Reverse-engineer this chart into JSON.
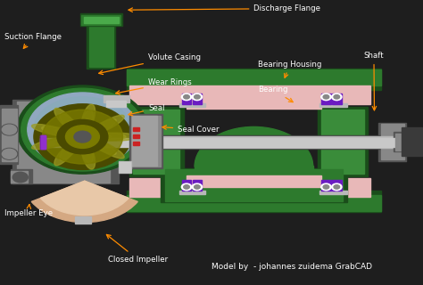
{
  "background_color": "#1e1e1e",
  "figsize": [
    4.74,
    3.2
  ],
  "dpi": 100,
  "arrow_color": "#FF8C00",
  "text_color": "#ffffff",
  "label_fontsize": 6.2,
  "credit_fontsize": 6.5,
  "colors": {
    "dark_bg": "#1e1e1e",
    "green_main": "#2d7a2d",
    "green_dark": "#1a4d1a",
    "green_mid": "#3a8c3a",
    "green_light": "#4aaa4a",
    "olive_dark": "#4a4a00",
    "olive_mid": "#7a7a00",
    "olive_light": "#9a9a20",
    "gray_light": "#b8b8b8",
    "gray_mid": "#888888",
    "gray_dark": "#555555",
    "gray_darker": "#3a3a3a",
    "pink_light": "#e8b8b8",
    "pink_mid": "#d8a0a0",
    "purple": "#8B2BE2",
    "purple_dark": "#6B1BC2",
    "white": "#ffffff",
    "beige": "#d4a882",
    "beige_light": "#e8c8a8",
    "red_accent": "#cc2222",
    "silver": "#c8c8c8",
    "steel_blue": "#7090a8",
    "light_blue_gray": "#90a8c0",
    "dark_green_casing": "#0d3d0d"
  },
  "anno_data": [
    [
      "Discharge Flange",
      [
        0.6,
        0.97
      ],
      [
        0.295,
        0.965
      ]
    ],
    [
      "Suction Flange",
      [
        0.01,
        0.87
      ],
      [
        0.05,
        0.82
      ]
    ],
    [
      "Volute Casing",
      [
        0.35,
        0.8
      ],
      [
        0.225,
        0.74
      ]
    ],
    [
      "Wear Rings",
      [
        0.35,
        0.71
      ],
      [
        0.265,
        0.67
      ]
    ],
    [
      "Seal",
      [
        0.35,
        0.62
      ],
      [
        0.295,
        0.595
      ]
    ],
    [
      "Seal Cover",
      [
        0.42,
        0.545
      ],
      [
        0.375,
        0.555
      ]
    ],
    [
      "Shaft",
      [
        0.86,
        0.805
      ],
      [
        0.885,
        0.6
      ]
    ],
    [
      "Bearing Housing",
      [
        0.61,
        0.775
      ],
      [
        0.67,
        0.715
      ]
    ],
    [
      "Bearing",
      [
        0.61,
        0.685
      ],
      [
        0.7,
        0.635
      ]
    ],
    [
      "Impeller Eye",
      [
        0.01,
        0.25
      ],
      [
        0.07,
        0.295
      ]
    ],
    [
      "Closed Impeller",
      [
        0.255,
        0.09
      ],
      [
        0.245,
        0.185
      ]
    ]
  ]
}
